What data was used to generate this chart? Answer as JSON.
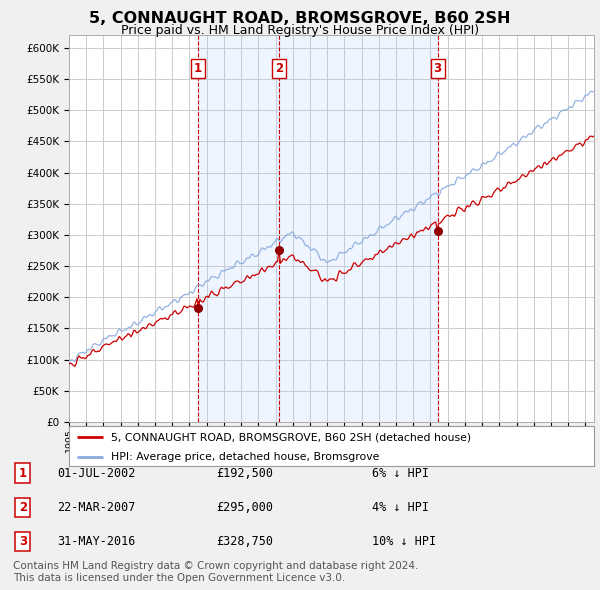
{
  "title": "5, CONNAUGHT ROAD, BROMSGROVE, B60 2SH",
  "subtitle": "Price paid vs. HM Land Registry's House Price Index (HPI)",
  "title_fontsize": 11.5,
  "subtitle_fontsize": 9,
  "ylabel_ticks": [
    "£0",
    "£50K",
    "£100K",
    "£150K",
    "£200K",
    "£250K",
    "£300K",
    "£350K",
    "£400K",
    "£450K",
    "£500K",
    "£550K",
    "£600K"
  ],
  "ytick_values": [
    0,
    50000,
    100000,
    150000,
    200000,
    250000,
    300000,
    350000,
    400000,
    450000,
    500000,
    550000,
    600000
  ],
  "ylim": [
    0,
    620000
  ],
  "xlim_start": 1995.0,
  "xlim_end": 2025.5,
  "background_color": "#f0f0f0",
  "plot_background_color": "#ffffff",
  "grid_color": "#cccccc",
  "sale_color": "#cc0000",
  "hpi_color": "#88aadd",
  "dashed_line_color": "#cc0000",
  "shade_color": "#ddeeff",
  "transactions": [
    {
      "num": 1,
      "date_year": 2002.5,
      "price": 192500
    },
    {
      "num": 2,
      "date_year": 2007.22,
      "price": 295000
    },
    {
      "num": 3,
      "date_year": 2016.42,
      "price": 328750
    }
  ],
  "legend_sale_label": "5, CONNAUGHT ROAD, BROMSGROVE, B60 2SH (detached house)",
  "legend_hpi_label": "HPI: Average price, detached house, Bromsgrove",
  "table_rows": [
    {
      "num": "1",
      "date": "01-JUL-2002",
      "price": "£192,500",
      "hpi": "6% ↓ HPI"
    },
    {
      "num": "2",
      "date": "22-MAR-2007",
      "price": "£295,000",
      "hpi": "4% ↓ HPI"
    },
    {
      "num": "3",
      "date": "31-MAY-2016",
      "price": "£328,750",
      "hpi": "10% ↓ HPI"
    }
  ],
  "footer": "Contains HM Land Registry data © Crown copyright and database right 2024.\nThis data is licensed under the Open Government Licence v3.0.",
  "footer_fontsize": 7.5
}
